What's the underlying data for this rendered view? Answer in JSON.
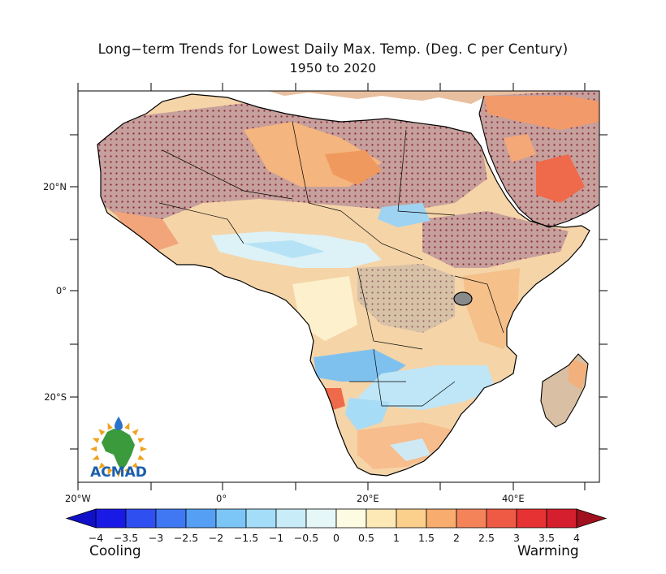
{
  "title": "Long−term Trends for Lowest Daily Max. Temp. (Deg. C per Century)",
  "subtitle": "1950 to 2020",
  "y_axis": {
    "labels": [
      "20°N",
      "0°",
      "20°S"
    ]
  },
  "x_axis": {
    "labels": [
      "20°W",
      "0°",
      "20°E",
      "40°E"
    ]
  },
  "colorbar": {
    "labels": [
      "−4",
      "−3.5",
      "−3",
      "−2.5",
      "−2",
      "−1.5",
      "−1",
      "−0.5",
      "0",
      "0.5",
      "1",
      "1.5",
      "2",
      "2.5",
      "3",
      "3.5",
      "4"
    ],
    "colors": [
      "#1a1ae6",
      "#2f4ff0",
      "#3f78f2",
      "#55a0f5",
      "#7cc6f7",
      "#a4ddf8",
      "#c8ecf8",
      "#e6f7f8",
      "#fdfbe2",
      "#fde9b6",
      "#fbcf8c",
      "#f8ac6e",
      "#f5835a",
      "#ef5a45",
      "#e63232",
      "#d51e2e"
    ],
    "under_color": "#1010c8",
    "over_color": "#a0101e",
    "left_word": "Cooling",
    "right_word": "Warming"
  },
  "logo": {
    "text": "ACMAD",
    "colors": {
      "text": "#1b5fae",
      "continent": "#3a9a3c",
      "rays": "#f0a21e",
      "drop": "#2a73c8"
    }
  },
  "legend": {
    "stipple_color": "#8c2a3c",
    "significant_fill": "#c79a9a"
  }
}
